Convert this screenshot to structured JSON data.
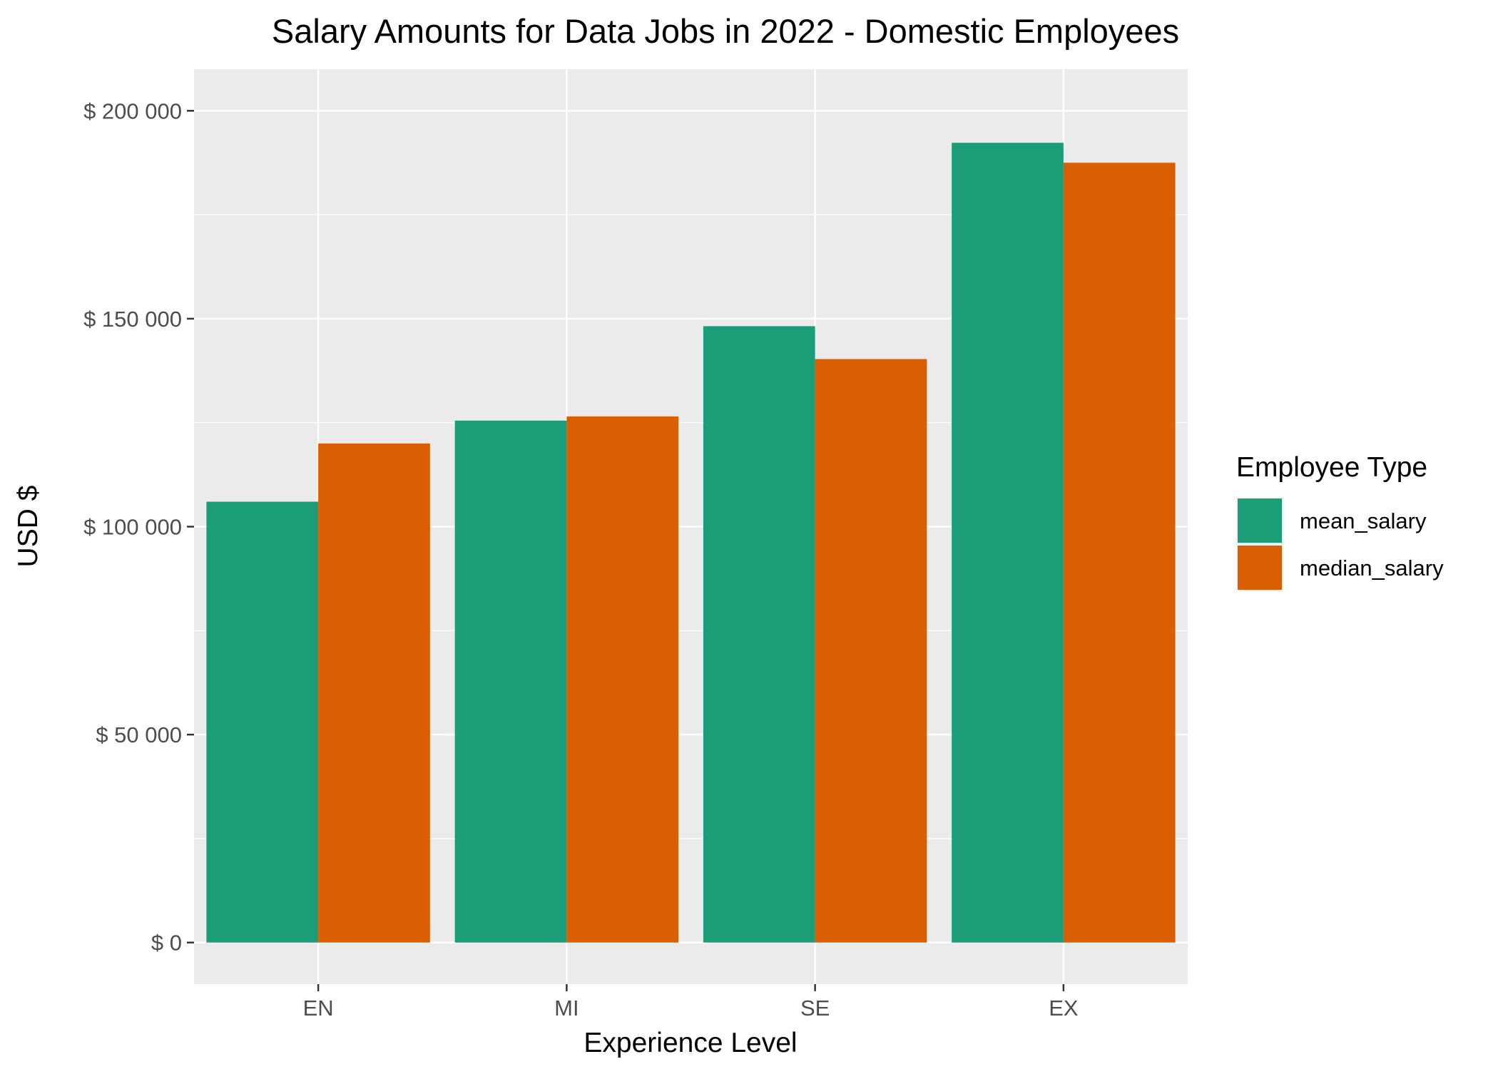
{
  "chart_data": {
    "type": "bar",
    "title": "Salary Amounts for Data Jobs in  2022  - Domestic Employees",
    "xlabel": "Experience Level",
    "ylabel": "USD $",
    "categories": [
      "EN",
      "MI",
      "SE",
      "EX"
    ],
    "series": [
      {
        "name": "mean_salary",
        "color": "#1b9e77",
        "values": [
          106000,
          125500,
          148200,
          192300
        ]
      },
      {
        "name": "median_salary",
        "color": "#d95f02",
        "values": [
          120000,
          126500,
          140300,
          187500
        ]
      }
    ],
    "ylim": [
      -10000,
      210000
    ],
    "yticks": [
      0,
      50000,
      100000,
      150000,
      200000
    ],
    "ytick_labels": [
      "$ 0",
      "$ 50 000",
      "$ 100 000",
      "$ 150 000",
      "$ 200 000"
    ],
    "legend": {
      "title": "Employee Type",
      "position": "right"
    },
    "grid": true,
    "panel_background": "#ebebeb",
    "gridline_color": "#ffffff"
  }
}
